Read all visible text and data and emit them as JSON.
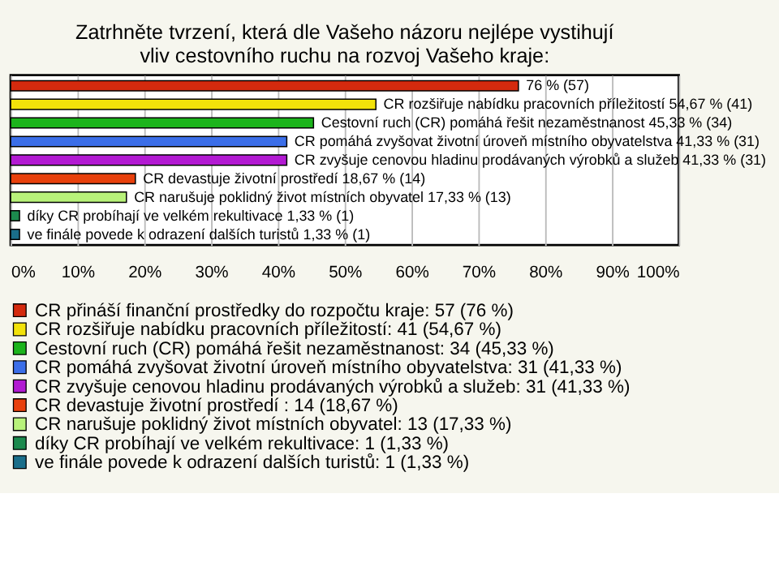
{
  "chart_data": {
    "type": "bar",
    "orientation": "horizontal",
    "title": "Zatrhněte tvrzení, která dle Vašeho názoru nejlépe vystihují vliv cestovního ruchu na rozvoj Vašeho kraje:",
    "categories": [
      null,
      null,
      null,
      null,
      null,
      null,
      null,
      null,
      null
    ],
    "series": [
      {
        "name": "CR přináší finanční prostředky do rozpočtu kraje: 57 (76 %)",
        "color": "#d42a0e",
        "values": [
          76,
          null,
          null,
          null,
          null,
          null,
          null,
          null,
          null
        ],
        "value_labels": [
          "76 % (57)",
          null,
          null,
          null,
          null,
          null,
          null,
          null,
          null
        ]
      },
      {
        "name": "CR rozšiřuje nabídku pracovních příležitostí: 41 (54,67 %)",
        "color": "#f2e20a",
        "values": [
          null,
          54.67,
          null,
          null,
          null,
          null,
          null,
          null,
          null
        ],
        "value_labels": [
          null,
          "CR rozšiřuje nabídku pracovních příležitostí 54,67 % (41)",
          null,
          null,
          null,
          null,
          null,
          null,
          null
        ]
      },
      {
        "name": "Cestovní ruch (CR) pomáhá řešit nezaměstnanost: 34 (45,33 %)",
        "color": "#1cb41c",
        "values": [
          null,
          null,
          45.33,
          null,
          null,
          null,
          null,
          null,
          null
        ],
        "value_labels": [
          null,
          null,
          "Cestovní ruch (CR) pomáhá řešit nezaměstnanost 45,33 % (34)",
          null,
          null,
          null,
          null,
          null,
          null
        ]
      },
      {
        "name": "CR pomáhá zvyšovat životní úroveň místního obyvatelstva: 31 (41,33 %)",
        "color": "#3b6ee8",
        "values": [
          null,
          null,
          null,
          41.33,
          null,
          null,
          null,
          null,
          null
        ],
        "value_labels": [
          null,
          null,
          null,
          "CR pomáhá zvyšovat životní úroveň místního obyvatelstva 41,33 % (31)",
          null,
          null,
          null,
          null,
          null
        ]
      },
      {
        "name": "CR zvyšuje cenovou hladinu prodávaných výrobků a služeb: 31 (41,33 %)",
        "color": "#b21ad2",
        "values": [
          null,
          null,
          null,
          null,
          41.33,
          null,
          null,
          null,
          null
        ],
        "value_labels": [
          null,
          null,
          null,
          null,
          "CR zvyšuje cenovou hladinu prodávaných výrobků a služeb 41,33 % (31)",
          null,
          null,
          null,
          null
        ]
      },
      {
        "name": "CR devastuje životní prostředí : 14 (18,67 %)",
        "color": "#e8400c",
        "values": [
          null,
          null,
          null,
          null,
          null,
          18.67,
          null,
          null,
          null
        ],
        "value_labels": [
          null,
          null,
          null,
          null,
          null,
          "CR devastuje životní prostředí  18,67 % (14)",
          null,
          null,
          null
        ]
      },
      {
        "name": "CR narušuje poklidný život místních obyvatel: 13 (17,33 %)",
        "color": "#b8f27a",
        "values": [
          null,
          null,
          null,
          null,
          null,
          null,
          17.33,
          null,
          null
        ],
        "value_labels": [
          null,
          null,
          null,
          null,
          null,
          null,
          "CR narušuje poklidný život místních obyvatel 17,33 % (13)",
          null,
          null
        ]
      },
      {
        "name": "díky CR probíhají ve velkém rekultivace: 1 (1,33 %)",
        "color": "#1c8a4e",
        "values": [
          null,
          null,
          null,
          null,
          null,
          null,
          null,
          1.33,
          null
        ],
        "value_labels": [
          null,
          null,
          null,
          null,
          null,
          null,
          null,
          "díky CR probíhají ve velkém rekultivace 1,33 % (1)",
          null
        ]
      },
      {
        "name": "ve finále povede k odrazení dalších turistů: 1 (1,33 %)",
        "color": "#1a6e8a",
        "values": [
          null,
          null,
          null,
          null,
          null,
          null,
          null,
          null,
          1.33
        ],
        "value_labels": [
          null,
          null,
          null,
          null,
          null,
          null,
          null,
          null,
          "ve finále povede k odrazení dalších turistů 1,33 % (1)"
        ]
      }
    ],
    "xlim": [
      0,
      100
    ],
    "xticks": [
      {
        "value": 0,
        "label": "0%"
      },
      {
        "value": 10,
        "label": "10%"
      },
      {
        "value": 20,
        "label": "20%"
      },
      {
        "value": 30,
        "label": "30%"
      },
      {
        "value": 40,
        "label": "40%"
      },
      {
        "value": 50,
        "label": "50%"
      },
      {
        "value": 60,
        "label": "60%"
      },
      {
        "value": 70,
        "label": "70%"
      },
      {
        "value": 80,
        "label": "80%"
      },
      {
        "value": 90,
        "label": "90%"
      },
      {
        "value": 100,
        "label": "100%"
      }
    ],
    "grid": "x",
    "legend": "bottom",
    "tick_labels": "x"
  }
}
